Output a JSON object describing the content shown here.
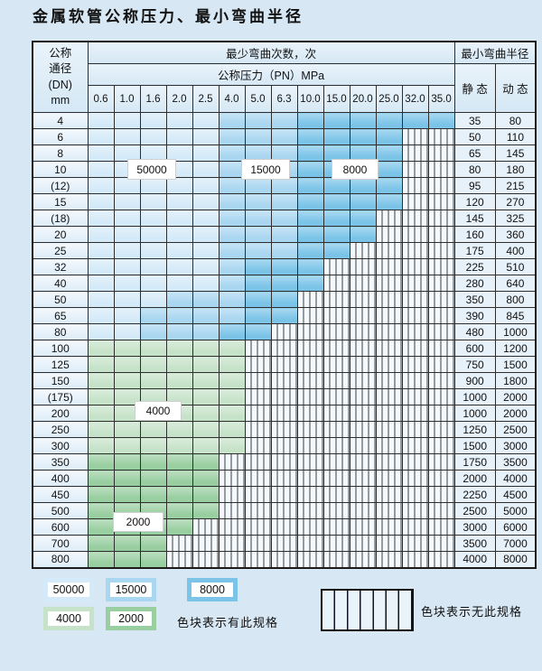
{
  "title": "金属软管公称压力、最小弯曲半径",
  "header": {
    "dn_lines": [
      "公称",
      "通径",
      "(DN)",
      "mm"
    ],
    "cycles_label": "最少弯曲次数，次",
    "pressure_label": "公称压力（PN）MPa",
    "radius_label": "最小弯曲半径",
    "static_label": "静 态",
    "dynamic_label": "动 态",
    "pressures": [
      "0.6",
      "1.0",
      "1.6",
      "2.0",
      "2.5",
      "4.0",
      "5.0",
      "6.3",
      "10.0",
      "15.0",
      "20.0",
      "25.0",
      "32.0",
      "35.0"
    ]
  },
  "colors": {
    "c50000": "#d5eaf8",
    "c15000": "#a9d6f0",
    "c8000": "#7bc4e8",
    "c4000": "#c6e2c9",
    "c2000": "#99cea0"
  },
  "rows": [
    {
      "dn": "4",
      "cells": "LLLLLMMMDDDDDD",
      "static": "35",
      "dynamic": "80"
    },
    {
      "dn": "6",
      "cells": "LLLLLMMMDDDDnn",
      "static": "50",
      "dynamic": "110"
    },
    {
      "dn": "8",
      "cells": "LLLLLMMMDDDDnn",
      "static": "65",
      "dynamic": "145"
    },
    {
      "dn": "10",
      "cells": "LLLLLMMMDDDDnn",
      "static": "80",
      "dynamic": "180"
    },
    {
      "dn": "(12)",
      "cells": "LLLLLMMMDDDDnn",
      "static": "95",
      "dynamic": "215"
    },
    {
      "dn": "15",
      "cells": "LLLLLMMMDDDDnn",
      "static": "120",
      "dynamic": "270"
    },
    {
      "dn": "(18)",
      "cells": "LLLLLMMMDDDnnn",
      "static": "145",
      "dynamic": "325"
    },
    {
      "dn": "20",
      "cells": "LLLLLMMMDDDnnn",
      "static": "160",
      "dynamic": "360"
    },
    {
      "dn": "25",
      "cells": "LLLLLMMMDDnnnn",
      "static": "175",
      "dynamic": "400"
    },
    {
      "dn": "32",
      "cells": "LLLLLMDDDnnnnn",
      "static": "225",
      "dynamic": "510"
    },
    {
      "dn": "40",
      "cells": "LLLLLMDDDnnnnn",
      "static": "280",
      "dynamic": "640"
    },
    {
      "dn": "50",
      "cells": "LLLMMMDDnnnnnn",
      "static": "350",
      "dynamic": "800"
    },
    {
      "dn": "65",
      "cells": "LLMMMMDDnnnnnn",
      "static": "390",
      "dynamic": "845"
    },
    {
      "dn": "80",
      "cells": "LLMMMDDnnnnnnn",
      "static": "480",
      "dynamic": "1000"
    },
    {
      "dn": "100",
      "cells": "ggggggnnnnnnnn",
      "static": "600",
      "dynamic": "1200"
    },
    {
      "dn": "125",
      "cells": "ggggggnnnnnnnn",
      "static": "750",
      "dynamic": "1500"
    },
    {
      "dn": "150",
      "cells": "ggggggnnnnnnnn",
      "static": "900",
      "dynamic": "1800"
    },
    {
      "dn": "(175)",
      "cells": "ggggggnnnnnnnn",
      "static": "1000",
      "dynamic": "2000"
    },
    {
      "dn": "200",
      "cells": "ggggggnnnnnnnn",
      "static": "1000",
      "dynamic": "2000"
    },
    {
      "dn": "250",
      "cells": "ggggggnnnnnnnn",
      "static": "1250",
      "dynamic": "2500"
    },
    {
      "dn": "300",
      "cells": "ggggggnnnnnnnn",
      "static": "1500",
      "dynamic": "3000"
    },
    {
      "dn": "350",
      "cells": "GGGGGnnnnnnnnn",
      "static": "1750",
      "dynamic": "3500"
    },
    {
      "dn": "400",
      "cells": "GGGGGnnnnnnnnn",
      "static": "2000",
      "dynamic": "4000"
    },
    {
      "dn": "450",
      "cells": "GGGGGnnnnnnnnn",
      "static": "2250",
      "dynamic": "4500"
    },
    {
      "dn": "500",
      "cells": "GGGGGnnnnnnnnn",
      "static": "2500",
      "dynamic": "5000"
    },
    {
      "dn": "600",
      "cells": "GGGGnnnnnnnnnn",
      "static": "3000",
      "dynamic": "6000"
    },
    {
      "dn": "700",
      "cells": "GGGnnnnnnnnnnn",
      "static": "3500",
      "dynamic": "7000"
    },
    {
      "dn": "800",
      "cells": "GGGnnnnnnnnnnn",
      "static": "4000",
      "dynamic": "8000"
    }
  ],
  "overlays": [
    {
      "label": "50000"
    },
    {
      "label": "15000"
    },
    {
      "label": "8000"
    },
    {
      "label": "4000"
    },
    {
      "label": "2000"
    }
  ],
  "legend": {
    "has_spec_swatches": [
      {
        "label": "50000",
        "color_key": "c50000"
      },
      {
        "label": "15000",
        "color_key": "c15000"
      },
      {
        "label": "8000",
        "color_key": "c8000"
      },
      {
        "label": "4000",
        "color_key": "c4000"
      },
      {
        "label": "2000",
        "color_key": "c2000"
      }
    ],
    "has_spec_text": "色块表示有此规格",
    "no_spec_text": "色块表示无此规格"
  }
}
